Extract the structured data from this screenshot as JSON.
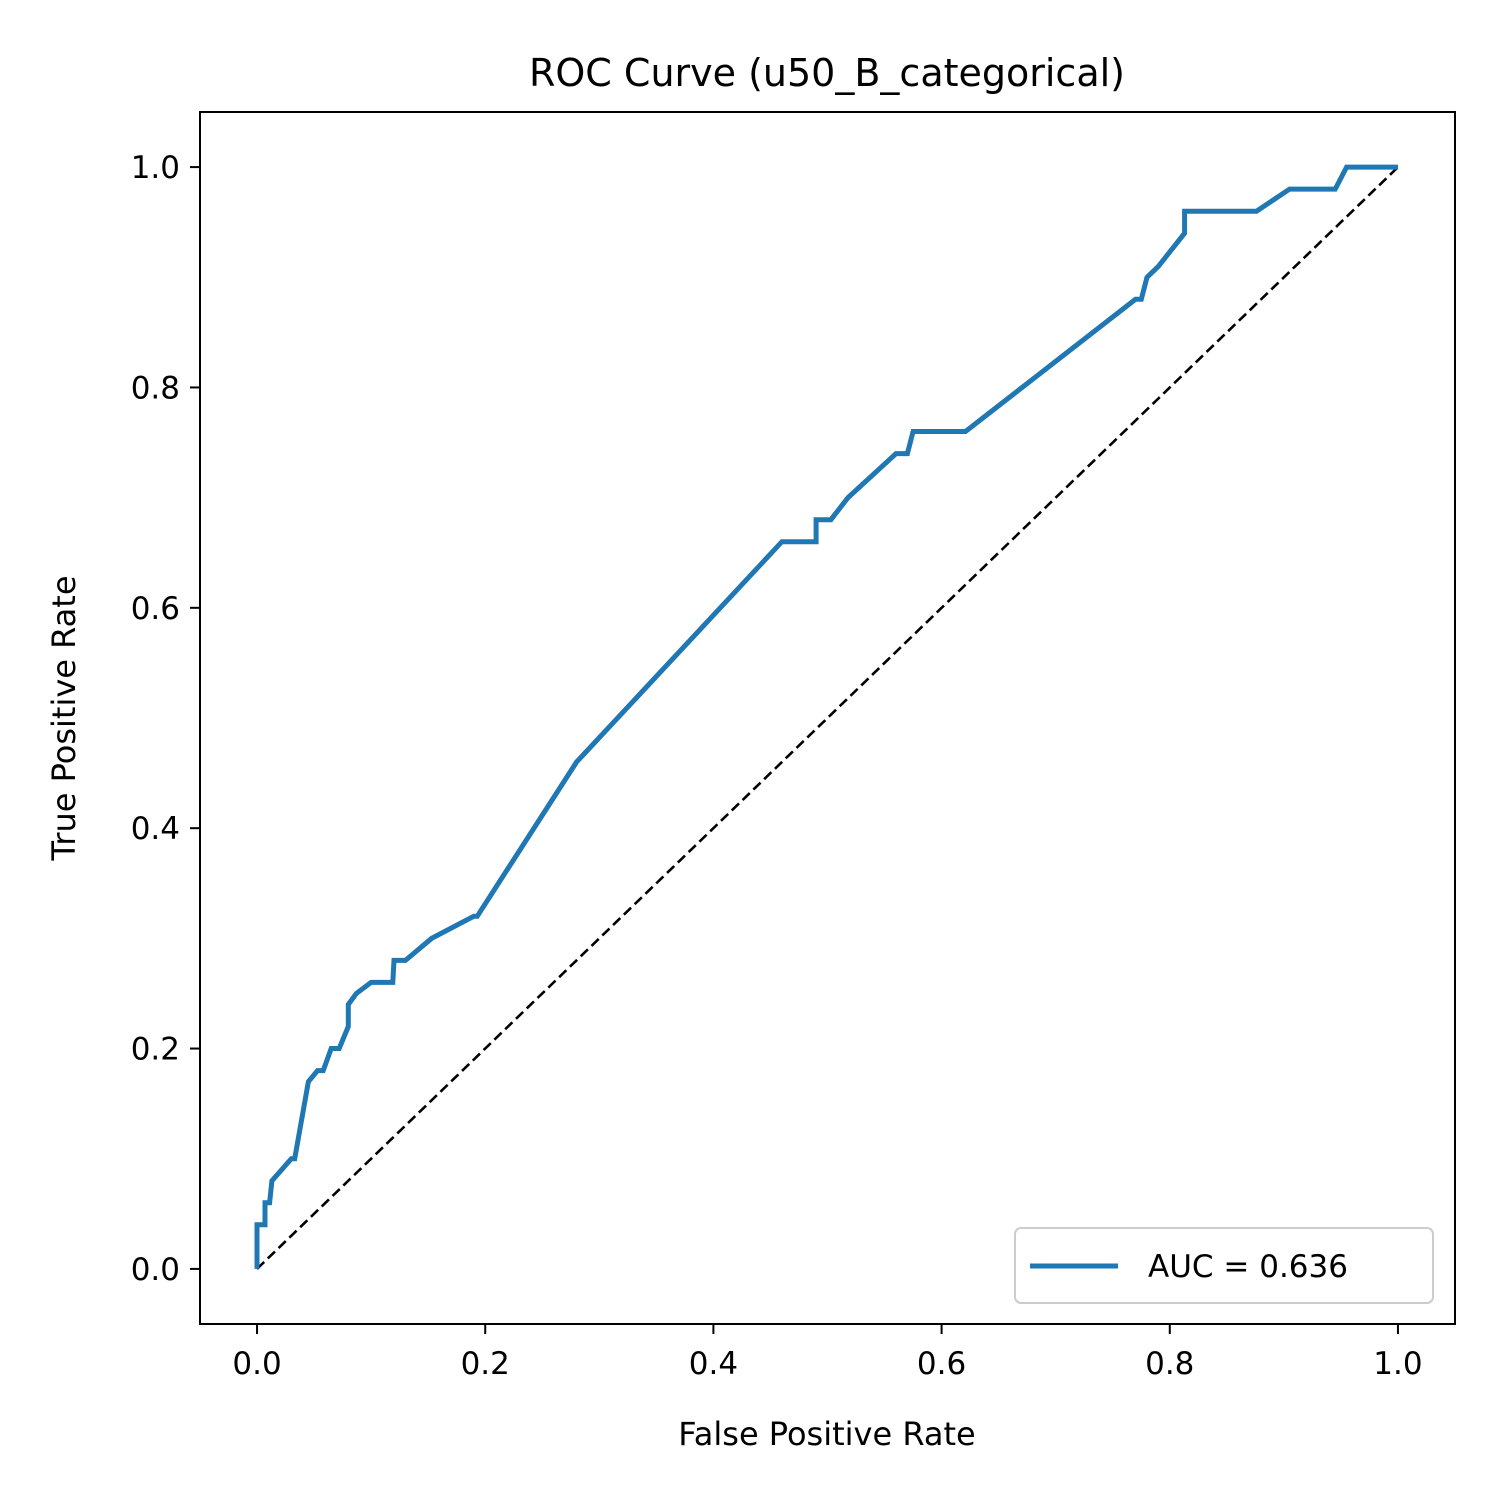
{
  "chart_data": {
    "type": "line",
    "title": "ROC Curve (u50_B_categorical)",
    "xlabel": "False Positive Rate",
    "ylabel": "True Positive Rate",
    "xlim": [
      -0.05,
      1.05
    ],
    "ylim": [
      -0.05,
      1.05
    ],
    "xticks": [
      0.0,
      0.2,
      0.4,
      0.6,
      0.8,
      1.0
    ],
    "xtick_labels": [
      "0.0",
      "0.2",
      "0.4",
      "0.6",
      "0.8",
      "1.0"
    ],
    "yticks": [
      0.0,
      0.2,
      0.4,
      0.6,
      0.8,
      1.0
    ],
    "ytick_labels": [
      "0.0",
      "0.2",
      "0.4",
      "0.6",
      "0.8",
      "1.0"
    ],
    "grid": false,
    "legend_position": "lower-right",
    "series": [
      {
        "name": "AUC = 0.636",
        "color": "#1f77b4",
        "style": "solid",
        "x": [
          0.0,
          0.0,
          0.003,
          0.007,
          0.007,
          0.011,
          0.013,
          0.03,
          0.033,
          0.045,
          0.053,
          0.058,
          0.065,
          0.067,
          0.072,
          0.08,
          0.08,
          0.087,
          0.1,
          0.119,
          0.12,
          0.13,
          0.153,
          0.19,
          0.193,
          0.28,
          0.46,
          0.49,
          0.49,
          0.503,
          0.518,
          0.56,
          0.57,
          0.575,
          0.58,
          0.621,
          0.77,
          0.775,
          0.78,
          0.79,
          0.813,
          0.813,
          0.876,
          0.905,
          0.945,
          0.955,
          1.0
        ],
        "y": [
          0.0,
          0.04,
          0.04,
          0.04,
          0.06,
          0.06,
          0.08,
          0.1,
          0.1,
          0.17,
          0.18,
          0.18,
          0.2,
          0.2,
          0.2,
          0.22,
          0.24,
          0.25,
          0.26,
          0.26,
          0.28,
          0.28,
          0.3,
          0.32,
          0.32,
          0.46,
          0.66,
          0.66,
          0.68,
          0.68,
          0.7,
          0.74,
          0.74,
          0.76,
          0.76,
          0.76,
          0.88,
          0.88,
          0.9,
          0.91,
          0.94,
          0.96,
          0.96,
          0.98,
          0.98,
          1.0,
          1.0
        ]
      },
      {
        "name": "",
        "color": "#000000",
        "style": "dashed",
        "x": [
          0.0,
          1.0
        ],
        "y": [
          0.0,
          1.0
        ]
      }
    ]
  }
}
